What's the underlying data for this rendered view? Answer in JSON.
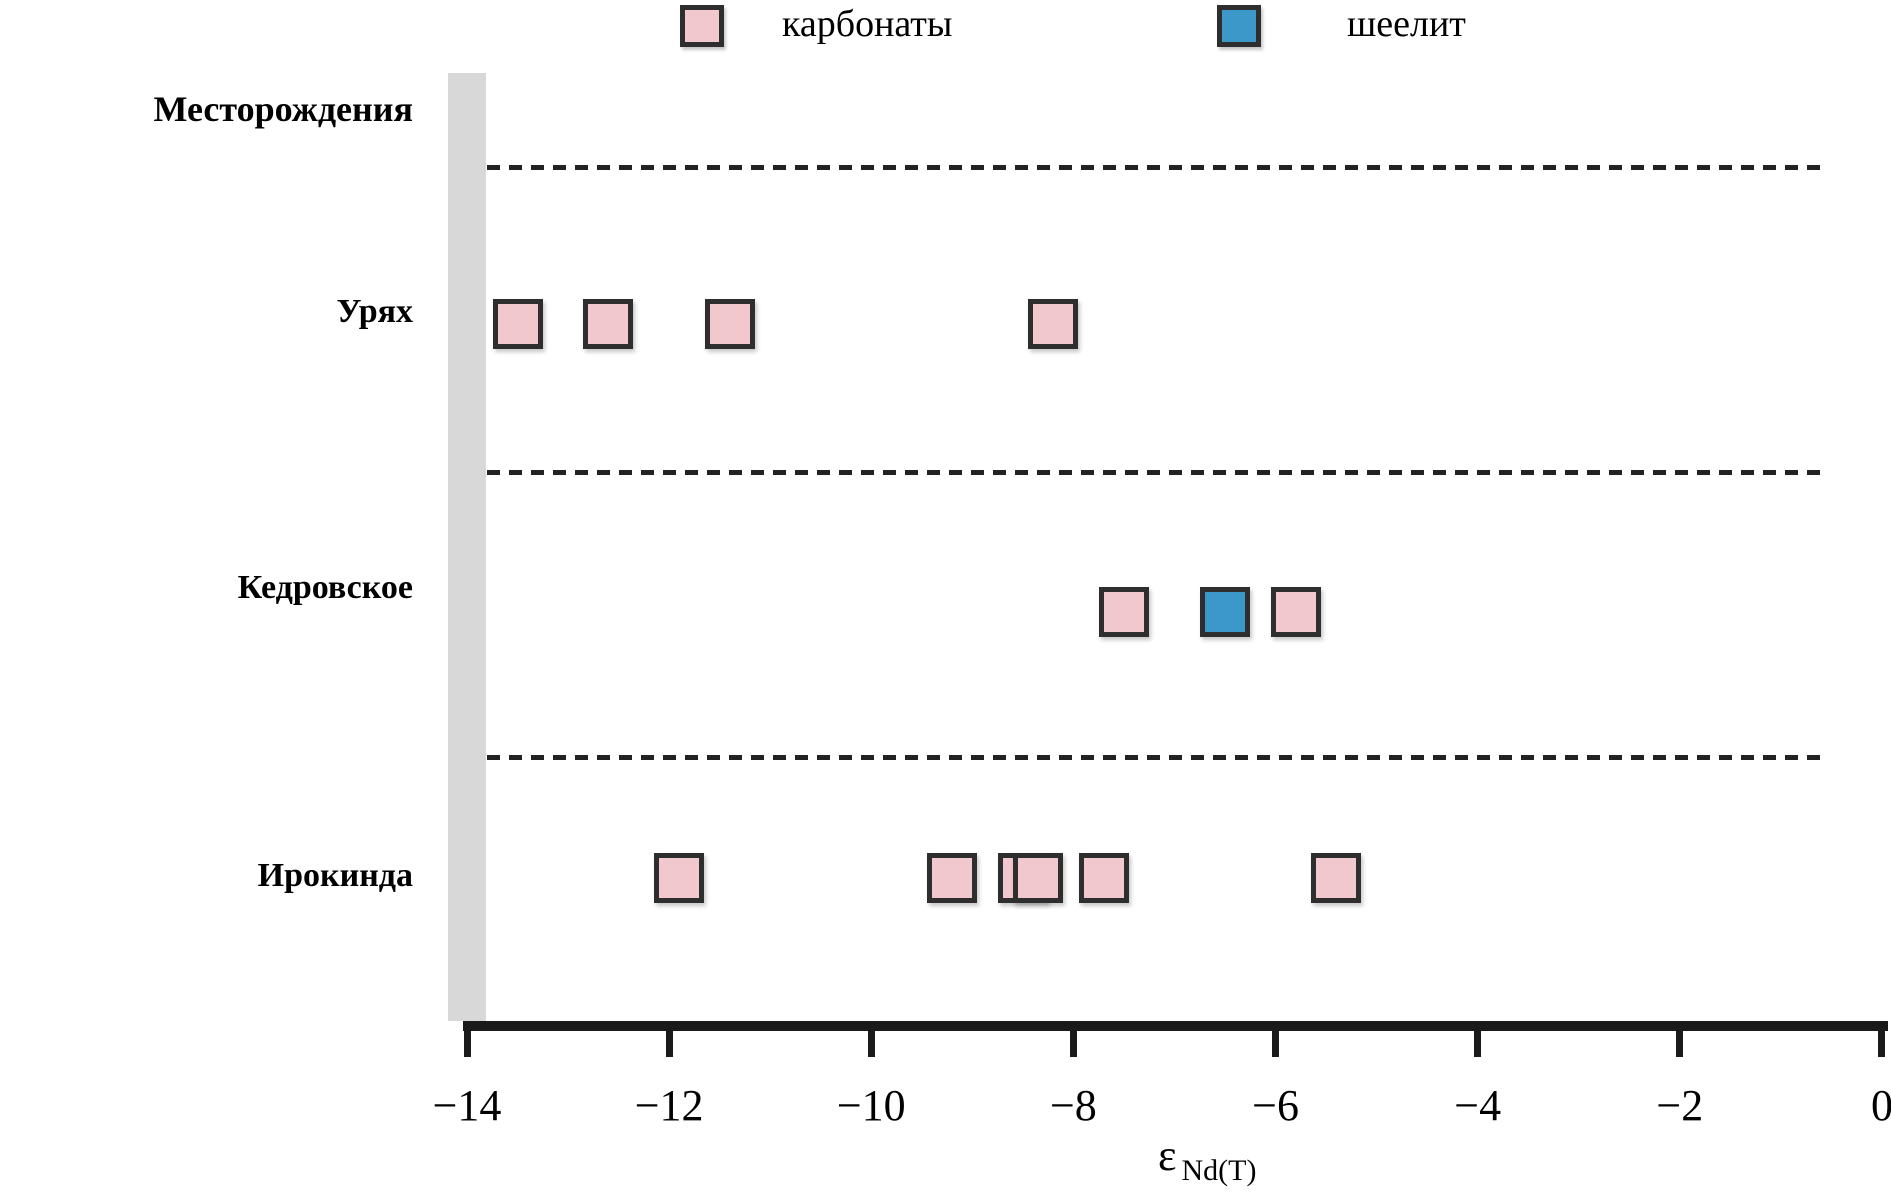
{
  "legend": {
    "items": [
      {
        "label": "карбонаты",
        "color": "#f0c8cd"
      },
      {
        "label": "шеелит",
        "color": "#3b98c8"
      }
    ]
  },
  "chart_data": {
    "type": "scatter",
    "title": "",
    "header_label": "Месторождения",
    "xlabel": "εNd(T)",
    "xlabel_parts": {
      "symbol": "ε",
      "subscript": "Nd(T)"
    },
    "x_range": [
      -14,
      0
    ],
    "x_ticks": [
      -14,
      -12,
      -10,
      -8,
      -6,
      -4,
      -2,
      0
    ],
    "x_tick_labels": [
      "−14",
      "−12",
      "−10",
      "−8",
      "−6",
      "−4",
      "−2",
      "0"
    ],
    "legend_position": "top",
    "grid": "dotted row separators",
    "marker_shape": "square",
    "series": [
      {
        "name": "карбонаты",
        "marker": "square",
        "color": "#f0c8cd"
      },
      {
        "name": "шеелит",
        "marker": "square",
        "color": "#3b98c8"
      }
    ],
    "rows": [
      {
        "label": "Урях",
        "points": [
          {
            "x": -13.5,
            "series": "карбонаты"
          },
          {
            "x": -12.6,
            "series": "карбонаты"
          },
          {
            "x": -11.4,
            "series": "карбонаты"
          },
          {
            "x": -8.2,
            "series": "карбонаты"
          }
        ]
      },
      {
        "label": "Кедровское",
        "points": [
          {
            "x": -7.5,
            "series": "карбонаты"
          },
          {
            "x": -6.5,
            "series": "шеелит"
          },
          {
            "x": -5.8,
            "series": "карбонаты"
          }
        ]
      },
      {
        "label": "Ирокинда",
        "points": [
          {
            "x": -11.9,
            "series": "карбонаты"
          },
          {
            "x": -9.2,
            "series": "карбонаты"
          },
          {
            "x": -8.5,
            "series": "карбонаты"
          },
          {
            "x": -8.35,
            "series": "карбонаты"
          },
          {
            "x": -7.7,
            "series": "карбонаты"
          },
          {
            "x": -5.4,
            "series": "карбонаты"
          }
        ]
      }
    ]
  }
}
